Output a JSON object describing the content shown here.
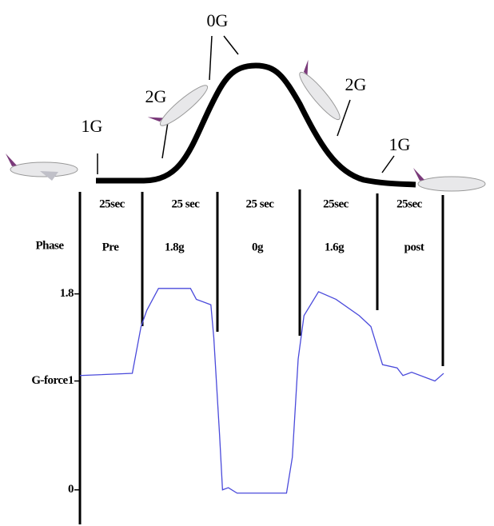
{
  "profile": {
    "g_labels": [
      "1G",
      "2G",
      "0G",
      "2G",
      "1G"
    ],
    "durations": [
      "25sec",
      "25 sec",
      "25 sec",
      "25sec",
      "25sec"
    ],
    "phase_label": "Phase",
    "phases": [
      "Pre",
      "1.8g",
      "0g",
      "1.6g",
      "post"
    ]
  },
  "chart_data": {
    "type": "line",
    "y_label": "G-force",
    "x": [
      0,
      18,
      21,
      23,
      27,
      38,
      40,
      45,
      46,
      48,
      49,
      51,
      54,
      71,
      73,
      75,
      77,
      82,
      88,
      96,
      100,
      104,
      109,
      111,
      114,
      120,
      122,
      125
    ],
    "series": [
      {
        "color": "#4a4adb",
        "values": [
          1.05,
          1.07,
          1.5,
          1.65,
          1.85,
          1.85,
          1.75,
          1.7,
          1.4,
          0.5,
          0.0,
          0.02,
          -0.03,
          -0.03,
          0.3,
          1.2,
          1.6,
          1.82,
          1.75,
          1.6,
          1.5,
          1.15,
          1.12,
          1.05,
          1.08,
          1.02,
          1.0,
          1.07
        ]
      }
    ],
    "xlim": [
      0,
      125
    ],
    "ylim": [
      -0.31,
      2.37
    ],
    "yticks": [
      0,
      1,
      1.8
    ]
  }
}
